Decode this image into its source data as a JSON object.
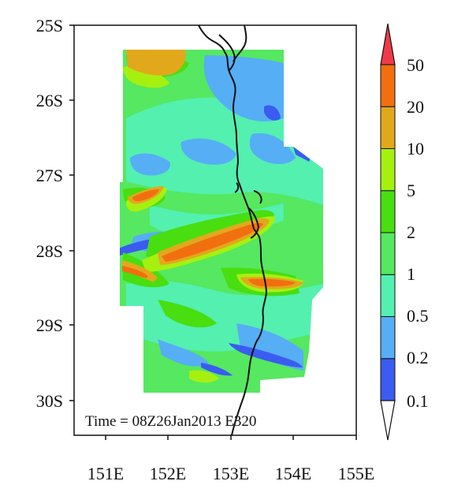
{
  "map": {
    "y_tick_labels": [
      "25S",
      "26S",
      "27S",
      "28S",
      "29S",
      "30S"
    ],
    "x_tick_labels": [
      "151E",
      "152E",
      "153E",
      "154E",
      "155E"
    ],
    "time_label": "Time = 08Z26Jan2013 E320"
  },
  "colorbar": {
    "labels": [
      "50",
      "20",
      "10",
      "5",
      "2",
      "1",
      "0.5",
      "0.2",
      "0.1"
    ],
    "colors_bottom_to_top": [
      "#3a5cf0",
      "#56aef5",
      "#53f0b0",
      "#55e860",
      "#48de10",
      "#a6f010",
      "#e2a81c",
      "#f26f10"
    ],
    "over_color": "#f03a4a",
    "under_color": "#ffffff"
  },
  "colors": {
    "coastline": "#111111",
    "background": "#ffffff"
  }
}
